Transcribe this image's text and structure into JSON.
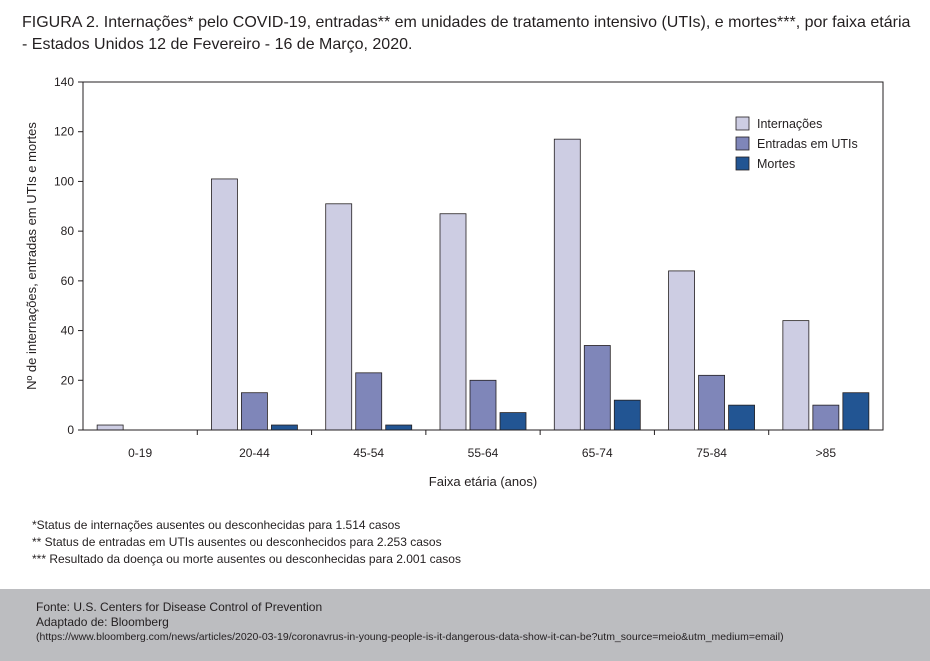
{
  "title": "FIGURA 2. Internações* pelo COVID-19, entradas** em unidades de tratamento intensivo (UTIs), e mortes***, por faixa etária - Estados Unidos 12 de Fevereiro - 16 de Março, 2020.",
  "chart_data": {
    "type": "bar",
    "title": "",
    "xlabel": "Faixa etária (anos)",
    "ylabel": "Nº de internações, entradas em UTIs e mortes",
    "ylim": [
      0,
      140
    ],
    "yticks": [
      0,
      20,
      40,
      60,
      80,
      100,
      120,
      140
    ],
    "categories": [
      "0-19",
      "20-44",
      "45-54",
      "55-64",
      "65-74",
      "75-84",
      ">85"
    ],
    "series": [
      {
        "name": "Internações",
        "color": "#cdcde3",
        "values": [
          2,
          101,
          91,
          87,
          117,
          64,
          44
        ]
      },
      {
        "name": "Entradas em UTIs",
        "color": "#7f86b9",
        "values": [
          0,
          15,
          23,
          20,
          34,
          22,
          10
        ]
      },
      {
        "name": "Mortes",
        "color": "#225593",
        "values": [
          0,
          2,
          2,
          7,
          12,
          10,
          15
        ]
      }
    ],
    "legend_position": "top-right",
    "grid": false
  },
  "notes": [
    "*Status de internações ausentes ou desconhecidas para 1.514 casos",
    "** Status de entradas em UTIs ausentes ou desconhecidos para 2.253 casos",
    "*** Resultado da doença ou morte ausentes ou desconhecidas para 2.001 casos"
  ],
  "footer": {
    "source": "Fonte: U.S. Centers for Disease Control of Prevention",
    "adapted": "Adaptado de: Bloomberg",
    "url": "(https://www.bloomberg.com/news/articles/2020-03-19/coronavrus-in-young-people-is-it-dangerous-data-show-it-can-be?utm_source=meio&utm_medium=email)"
  }
}
